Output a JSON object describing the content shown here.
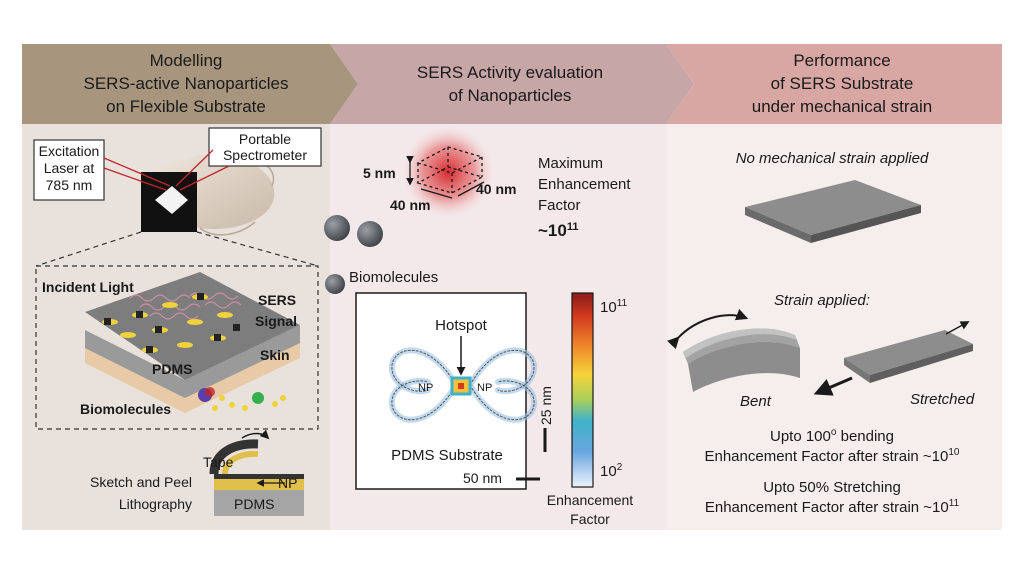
{
  "header": {
    "panel1": [
      "Modelling",
      "SERS-active Nanoparticles",
      "on Flexible Substrate"
    ],
    "panel2": [
      "SERS Activity evaluation",
      "of Nanoparticles"
    ],
    "panel3": [
      "Performance",
      "of SERS Substrate",
      "under mechanical strain"
    ]
  },
  "panel1": {
    "laser_label": [
      "Excitation",
      "Laser at",
      "785 nm"
    ],
    "spectrometer_label": [
      "Portable",
      "Spectrometer"
    ],
    "incident_light": "Incident Light",
    "sers_signal": [
      "SERS",
      "Signal"
    ],
    "pdms": "PDMS",
    "skin": "Skin",
    "biomolecules": "Biomolecules",
    "litho_label": [
      "Sketch and Peel",
      "Lithography"
    ],
    "tape": "Tape",
    "np": "NP",
    "litho_pdms": "PDMS"
  },
  "panel2": {
    "dim_5nm": "5 nm",
    "dim_40nm_a": "40 nm",
    "dim_40nm_b": "40 nm",
    "max_ef": [
      "Maximum",
      "Enhancement",
      "Factor"
    ],
    "ef_base": "~10",
    "ef_exp": "11",
    "biomolecules": "Biomolecules",
    "hotspot": "Hotspot",
    "np_left": "NP",
    "np_right": "NP",
    "scale_25": "25 nm",
    "pdms_substrate": "PDMS Substrate",
    "scale_50": "50 nm",
    "cbar_top_base": "10",
    "cbar_top_exp": "11",
    "cbar_bot_base": "10",
    "cbar_bot_exp": "2",
    "cbar_label": [
      "Enhancement",
      "Factor"
    ]
  },
  "panel3": {
    "no_strain": "No mechanical strain applied",
    "strain_applied": "Strain applied:",
    "bent": "Bent",
    "stretched": "Stretched",
    "bend_text": "Upto 100",
    "bend_deg": "o",
    "bend_text2": " bending",
    "bend_ef": "Enhancement Factor after strain ~10",
    "bend_ef_exp": "10",
    "stretch_text": "Upto 50% Stretching",
    "stretch_ef": "Enhancement Factor after strain ~10",
    "stretch_ef_exp": "11"
  },
  "colors": {
    "header1": "#a8957e",
    "header2": "#c7a6a7",
    "header3": "#d9a7a3",
    "panel1_bg": "#e9e2dc",
    "panel2_bg": "#f4e9ea",
    "panel3_bg": "#f6eeed"
  }
}
